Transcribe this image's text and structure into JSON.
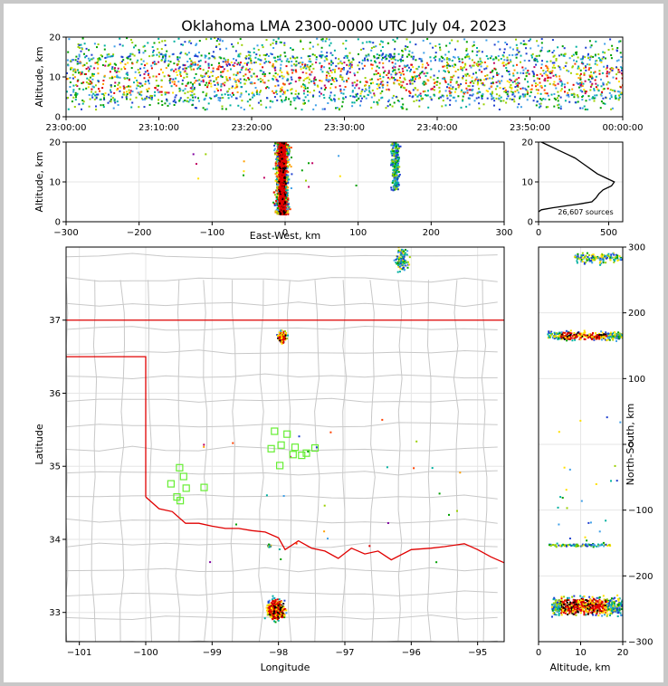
{
  "chart_data": [
    {
      "type": "heatmap",
      "title": "Oklahoma LMA 2300-0000 UTC July 04, 2023",
      "xlabel": "",
      "ylabel": "Altitude, km",
      "xticks": [
        "23:00:00",
        "23:10:00",
        "23:20:00",
        "23:30:00",
        "23:40:00",
        "23:50:00",
        "00:00:00"
      ],
      "ylim": [
        0,
        20
      ],
      "yticks": [
        0,
        10,
        20
      ]
    },
    {
      "type": "heatmap",
      "xlabel": "East-West, km",
      "ylabel": "Altitude, km",
      "xlim": [
        -300,
        300
      ],
      "xticks": [
        -300,
        -200,
        -100,
        0,
        100,
        200,
        300
      ],
      "ylim": [
        0,
        20
      ],
      "yticks": [
        0,
        10,
        20
      ]
    },
    {
      "type": "line",
      "annotation": "26,607 sources",
      "xlim": [
        0,
        600
      ],
      "xticks": [
        0,
        500
      ],
      "ylim": [
        0,
        20
      ],
      "yticks": [
        0,
        10,
        20
      ],
      "profile": [
        [
          0,
          2.5
        ],
        [
          20,
          3.0
        ],
        [
          100,
          3.5
        ],
        [
          200,
          4.0
        ],
        [
          300,
          4.5
        ],
        [
          380,
          5.0
        ],
        [
          410,
          6.0
        ],
        [
          430,
          7.0
        ],
        [
          460,
          8.0
        ],
        [
          520,
          9.0
        ],
        [
          540,
          10.0
        ],
        [
          480,
          11.0
        ],
        [
          420,
          12.0
        ],
        [
          380,
          13.0
        ],
        [
          340,
          14.0
        ],
        [
          300,
          15.0
        ],
        [
          260,
          16.0
        ],
        [
          200,
          17.0
        ],
        [
          140,
          18.0
        ],
        [
          80,
          19.0
        ],
        [
          20,
          20.0
        ]
      ]
    },
    {
      "type": "scatter",
      "xlabel": "Longitude",
      "ylabel": "Latitude",
      "xlim": [
        -101.2,
        -94.6
      ],
      "ylim": [
        32.6,
        38.0
      ],
      "xticks": [
        -101,
        -100,
        -99,
        -98,
        -97,
        -96,
        -95
      ],
      "yticks": [
        33,
        34,
        35,
        36,
        37
      ],
      "stations": [
        [
          -99.62,
          34.76
        ],
        [
          -99.49,
          34.98
        ],
        [
          -99.43,
          34.86
        ],
        [
          -99.39,
          34.7
        ],
        [
          -99.53,
          34.58
        ],
        [
          -99.48,
          34.53
        ],
        [
          -99.12,
          34.71
        ],
        [
          -98.06,
          35.48
        ],
        [
          -97.87,
          35.44
        ],
        [
          -97.96,
          35.29
        ],
        [
          -98.11,
          35.24
        ],
        [
          -97.75,
          35.26
        ],
        [
          -97.65,
          35.15
        ],
        [
          -97.58,
          35.18
        ],
        [
          -97.45,
          35.25
        ],
        [
          -97.98,
          35.01
        ],
        [
          -97.78,
          35.16
        ]
      ]
    },
    {
      "type": "heatmap",
      "xlabel": "Altitude, km",
      "ylabel": "North-South, km",
      "xlim": [
        0,
        20
      ],
      "xticks": [
        0,
        10,
        20
      ],
      "ylim": [
        -300,
        300
      ],
      "yticks": [
        -300,
        -200,
        -100,
        0,
        100,
        200,
        300
      ]
    }
  ]
}
